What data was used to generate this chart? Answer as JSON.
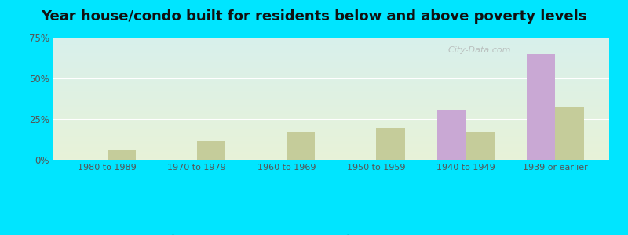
{
  "title": "Year house/condo built for residents below and above poverty levels",
  "categories": [
    "1980 to 1989",
    "1970 to 1979",
    "1960 to 1969",
    "1950 to 1959",
    "1940 to 1949",
    "1939 or earlier"
  ],
  "below_poverty": [
    0.0,
    0.0,
    0.0,
    0.0,
    31.0,
    65.0
  ],
  "above_poverty": [
    6.0,
    11.5,
    17.0,
    19.5,
    17.5,
    32.0
  ],
  "below_color": "#c9a8d4",
  "above_color": "#c5cc9a",
  "ylim": [
    0,
    75
  ],
  "yticks": [
    0,
    25,
    50,
    75
  ],
  "ytick_labels": [
    "0%",
    "25%",
    "50%",
    "75%"
  ],
  "plot_bg_top": "#d8f0ec",
  "plot_bg_bottom": "#e8f3d8",
  "outer_bg": "#00e5ff",
  "title_fontsize": 13,
  "bar_width": 0.32,
  "watermark": "  City-Data.com"
}
